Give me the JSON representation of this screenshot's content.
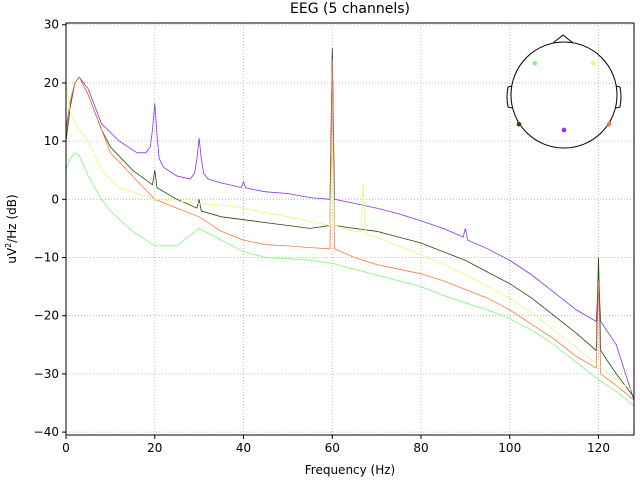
{
  "chart_data": {
    "type": "line",
    "title": "EEG (5 channels)",
    "xlabel": "Frequency (Hz)",
    "ylabel_main": "uV",
    "ylabel_sup": "2",
    "ylabel_rest": "/Hz (dB)",
    "xlim": [
      0,
      128
    ],
    "ylim": [
      -40.5,
      30.3
    ],
    "xticks": [
      0,
      20,
      40,
      60,
      80,
      100,
      120
    ],
    "yticks": [
      30,
      20,
      10,
      0,
      -10,
      -20,
      -30,
      -40
    ],
    "grid": true,
    "legend": "none",
    "series": [
      {
        "color": "#8e2ff2",
        "sensor_head": [
          0.0,
          -0.66
        ],
        "x": [
          0,
          1,
          2,
          3,
          5,
          8,
          12,
          16,
          18,
          19,
          19.5,
          20,
          20.5,
          21,
          22,
          25,
          28,
          29,
          29.5,
          30,
          30.5,
          31,
          32,
          35,
          38,
          39.5,
          40,
          40.5,
          42,
          45,
          50,
          55,
          59.5,
          60,
          60.5,
          65,
          70,
          75,
          80,
          85,
          89.5,
          90,
          90.5,
          95,
          100,
          105,
          110,
          115,
          119.5,
          120,
          120.5,
          124,
          128
        ],
        "y": [
          12,
          17,
          20,
          21,
          19,
          13,
          10,
          8,
          8,
          9,
          12,
          16.5,
          11,
          7,
          5.5,
          4,
          3.5,
          4.5,
          7,
          10.5,
          7,
          4.5,
          3.5,
          2.8,
          2.3,
          2,
          3,
          2,
          1.7,
          1.3,
          1,
          0.3,
          0,
          25,
          0,
          -0.7,
          -1.5,
          -2.5,
          -3.7,
          -5,
          -6.5,
          -5,
          -7,
          -8.5,
          -10.5,
          -13,
          -16,
          -19,
          -21,
          -13,
          -21,
          -25,
          -34.5
        ]
      },
      {
        "color": "#1e4e0e",
        "sensor_head": [
          -0.85,
          -0.55
        ],
        "x": [
          0,
          1,
          2,
          3,
          5,
          8,
          10,
          15,
          19.5,
          20,
          20.5,
          25,
          29.5,
          30,
          30.5,
          35,
          40,
          45,
          50,
          55,
          59.5,
          60,
          60.5,
          65,
          70,
          75,
          80,
          85,
          90,
          95,
          100,
          105,
          110,
          115,
          119.5,
          120,
          120.5,
          124,
          128
        ],
        "y": [
          10,
          16,
          20,
          21,
          18,
          12,
          9,
          5,
          2.5,
          5,
          2,
          0,
          -1.5,
          0,
          -2,
          -3,
          -3.5,
          -4,
          -4.5,
          -5,
          -4.5,
          26,
          -4.5,
          -5,
          -5.5,
          -6.5,
          -7.5,
          -9,
          -10.5,
          -12.5,
          -14.5,
          -17,
          -20,
          -23,
          -26,
          -10,
          -26,
          -30,
          -34
        ]
      },
      {
        "color": "#fa7943",
        "sensor_head": [
          0.85,
          -0.55
        ],
        "x": [
          0,
          1,
          2,
          3,
          5,
          8,
          10,
          15,
          20,
          25,
          30,
          35,
          40,
          45,
          50,
          55,
          59.5,
          60,
          60.5,
          65,
          70,
          75,
          80,
          85,
          90,
          95,
          100,
          105,
          110,
          115,
          119.5,
          120,
          120.5,
          124,
          128
        ],
        "y": [
          11,
          17,
          20,
          21,
          18,
          12,
          8,
          4,
          0,
          -1.5,
          -3,
          -5.5,
          -7,
          -7.8,
          -8,
          -8.3,
          -8.5,
          24,
          -8.5,
          -10,
          -11.2,
          -12,
          -12.8,
          -14,
          -15.5,
          -17,
          -19,
          -21.5,
          -24,
          -27,
          -29,
          -14,
          -30,
          -32,
          -34.5
        ]
      },
      {
        "color": "#e5f97a",
        "sensor_head": [
          0.55,
          0.6
        ],
        "x": [
          0,
          1,
          2,
          3,
          5,
          8,
          12,
          16,
          20,
          25,
          30,
          35,
          40,
          45,
          50,
          55,
          59.5,
          60,
          60.5,
          65,
          66.5,
          67,
          67.5,
          70,
          75,
          80,
          85,
          90,
          95,
          100,
          105,
          110,
          115,
          120,
          124,
          128
        ],
        "y": [
          20,
          15,
          13,
          12,
          10,
          5,
          2,
          1,
          0,
          -0.3,
          -0.7,
          -1,
          -1.5,
          -2.3,
          -3,
          -3.8,
          -4.5,
          10,
          -4.5,
          -5.5,
          -5.5,
          2.5,
          -6,
          -6.5,
          -8,
          -9.5,
          -11.2,
          -13,
          -15,
          -17,
          -19.5,
          -22.5,
          -25.5,
          -28.5,
          -31,
          -33
        ]
      },
      {
        "color": "#7ef77f",
        "sensor_head": [
          -0.55,
          0.6
        ],
        "x": [
          0,
          1,
          2,
          3,
          5,
          8,
          10,
          15,
          20,
          25,
          30,
          35,
          40,
          45,
          50,
          55,
          60,
          65,
          70,
          75,
          80,
          85,
          90,
          95,
          100,
          105,
          110,
          115,
          120,
          124,
          128
        ],
        "y": [
          5,
          7,
          8,
          7.5,
          4,
          0,
          -2,
          -5.5,
          -8,
          -8,
          -5,
          -7,
          -9,
          -10,
          -10.2,
          -10.5,
          -11,
          -12,
          -13,
          -14,
          -15,
          -16.5,
          -17.8,
          -19,
          -20.5,
          -22.5,
          -25,
          -28,
          -31,
          -33,
          -35.5
        ]
      }
    ]
  }
}
